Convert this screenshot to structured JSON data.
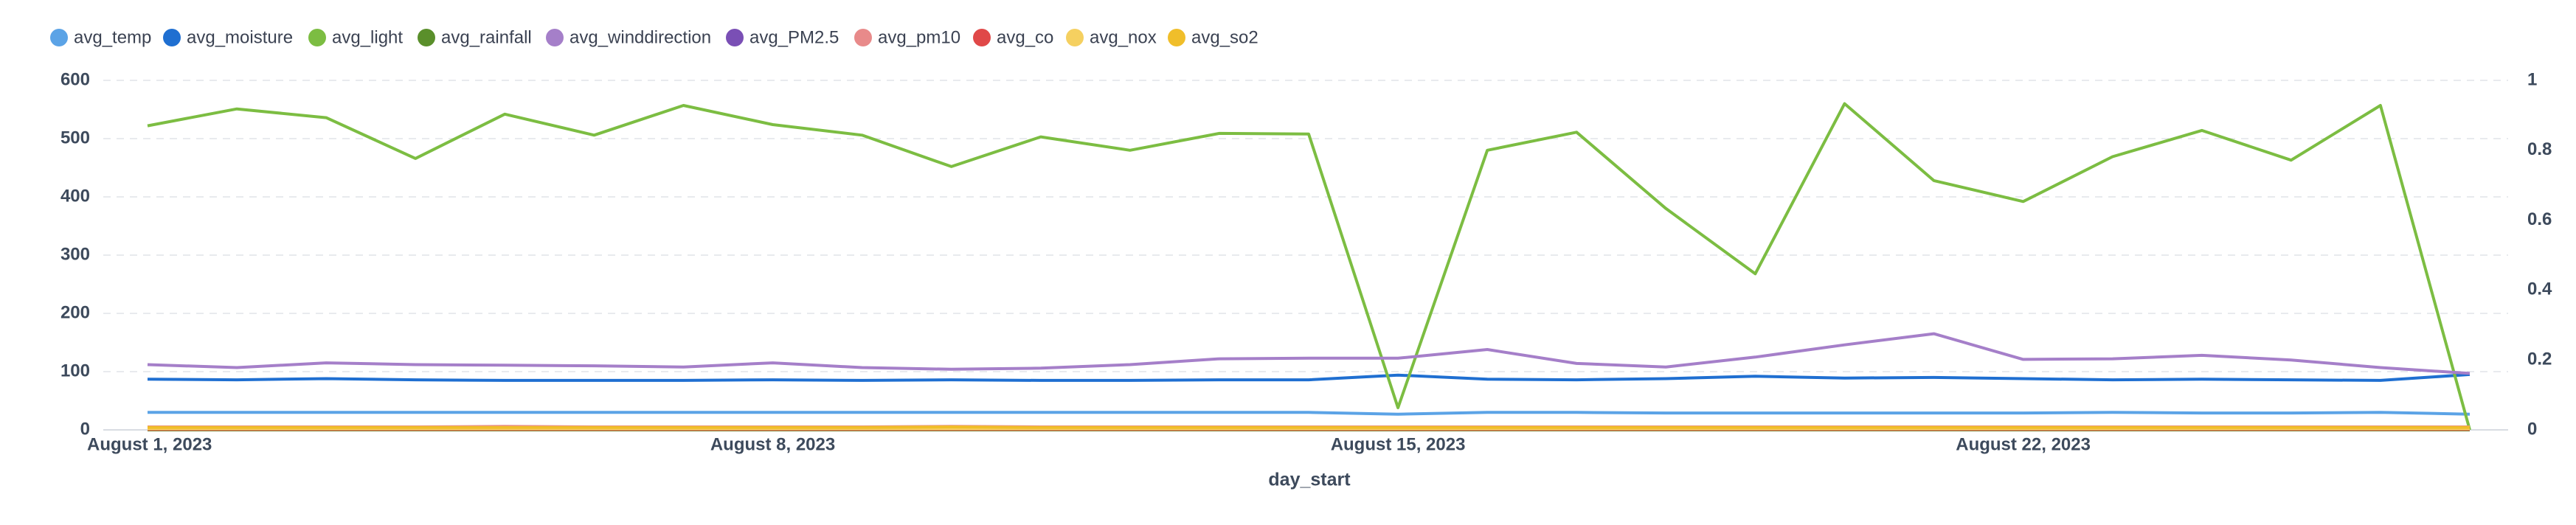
{
  "chart_data": {
    "type": "line",
    "x": [
      "2023-08-01",
      "2023-08-02",
      "2023-08-03",
      "2023-08-04",
      "2023-08-05",
      "2023-08-06",
      "2023-08-07",
      "2023-08-08",
      "2023-08-09",
      "2023-08-10",
      "2023-08-11",
      "2023-08-12",
      "2023-08-13",
      "2023-08-14",
      "2023-08-15",
      "2023-08-16",
      "2023-08-17",
      "2023-08-18",
      "2023-08-19",
      "2023-08-20",
      "2023-08-21",
      "2023-08-22",
      "2023-08-23",
      "2023-08-24",
      "2023-08-25",
      "2023-08-26",
      "2023-08-27"
    ],
    "xlabel": "day_start",
    "xticks": [
      {
        "value": "2023-08-01",
        "label": "August 1, 2023"
      },
      {
        "value": "2023-08-08",
        "label": "August 8, 2023"
      },
      {
        "value": "2023-08-15",
        "label": "August 15, 2023"
      },
      {
        "value": "2023-08-22",
        "label": "August 22, 2023"
      }
    ],
    "ylim": [
      0,
      600
    ],
    "yticks": [
      0,
      100,
      200,
      300,
      400,
      500,
      600
    ],
    "y2lim": [
      0,
      1
    ],
    "y2ticks": [
      0,
      0.2,
      0.4,
      0.6,
      0.8,
      1
    ],
    "grid": true,
    "legend": "top",
    "series": [
      {
        "name": "avg_temp",
        "color": "#5ba3e6",
        "values": [
          30,
          30,
          30,
          30,
          30,
          30,
          30,
          30,
          30,
          30,
          30,
          30,
          30,
          30,
          27,
          30,
          30,
          29,
          29,
          29,
          29,
          29,
          30,
          29,
          29,
          30,
          27
        ]
      },
      {
        "name": "avg_moisture",
        "color": "#1f6fd1",
        "values": [
          87,
          86,
          88,
          86,
          85,
          85,
          85,
          86,
          85,
          86,
          85,
          85,
          86,
          86,
          94,
          87,
          86,
          88,
          92,
          89,
          90,
          88,
          86,
          87,
          86,
          85,
          95
        ]
      },
      {
        "name": "avg_light",
        "color": "#7cbd42",
        "values": [
          522,
          551,
          536,
          466,
          542,
          506,
          557,
          524,
          506,
          452,
          503,
          480,
          509,
          508,
          38,
          480,
          511,
          380,
          268,
          560,
          428,
          392,
          469,
          514,
          463,
          557,
          0
        ]
      },
      {
        "name": "avg_rainfall",
        "color": "#5a8f2b",
        "values": [
          0,
          0,
          0,
          0,
          0,
          0,
          0,
          0,
          0,
          0,
          0,
          0,
          0,
          0,
          0,
          0,
          0,
          0,
          0,
          0,
          0,
          0,
          0,
          0,
          0,
          0,
          0
        ]
      },
      {
        "name": "avg_winddirection",
        "color": "#a57fc9",
        "values": [
          112,
          107,
          115,
          112,
          111,
          110,
          108,
          115,
          107,
          104,
          106,
          112,
          122,
          123,
          123,
          138,
          114,
          108,
          125,
          146,
          165,
          121,
          122,
          128,
          120,
          107,
          97
        ]
      },
      {
        "name": "avg_PM2.5",
        "color": "#7a4fb5",
        "values": [
          3,
          3,
          3,
          3,
          3,
          3,
          3,
          3,
          3,
          4,
          3,
          3,
          3,
          3,
          3,
          3,
          3,
          3,
          3,
          3,
          3,
          3,
          3,
          3,
          3,
          3,
          3
        ]
      },
      {
        "name": "avg_pm10",
        "color": "#e88a8a",
        "values": [
          5,
          5,
          5,
          5,
          6,
          5,
          5,
          5,
          5,
          6,
          5,
          5,
          5,
          5,
          5,
          5,
          5,
          5,
          5,
          5,
          5,
          5,
          5,
          5,
          5,
          5,
          5
        ]
      },
      {
        "name": "avg_co",
        "color": "#e04848",
        "values": [
          1,
          1,
          1,
          1,
          1,
          1,
          1,
          1,
          1,
          1,
          1,
          1,
          1,
          1,
          1,
          1,
          1,
          1,
          1,
          1,
          1,
          1,
          1,
          1,
          1,
          1,
          1
        ]
      },
      {
        "name": "avg_nox",
        "color": "#f5d060",
        "values": [
          2,
          2,
          2,
          2,
          2,
          2,
          2,
          2,
          2,
          2,
          2,
          2,
          2,
          2,
          2,
          2,
          2,
          2,
          2,
          2,
          2,
          2,
          2,
          2,
          2,
          2,
          2
        ]
      },
      {
        "name": "avg_so2",
        "color": "#f0be2a",
        "values": [
          4,
          4,
          4,
          4,
          4,
          4,
          4,
          4,
          4,
          5,
          4,
          4,
          4,
          4,
          4,
          4,
          4,
          4,
          4,
          4,
          4,
          4,
          4,
          4,
          4,
          4,
          4
        ]
      }
    ]
  }
}
